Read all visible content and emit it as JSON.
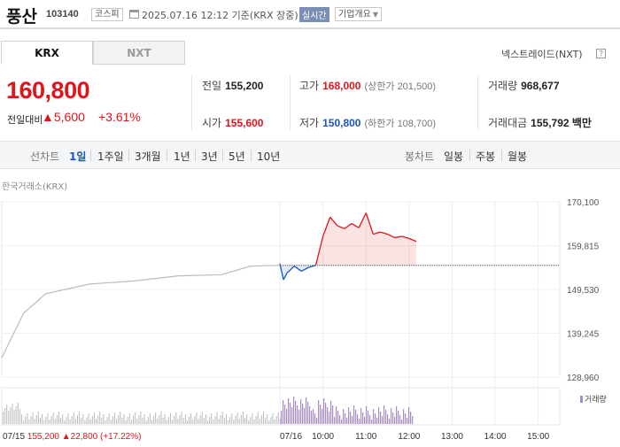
{
  "header": {
    "name": "풍산",
    "code": "103140",
    "market": "코스피",
    "datetime": "2025.07.16 12:12 기준(KRX 장중)",
    "realtime": "실시간",
    "company_info": "기업개요"
  },
  "tabs": {
    "krx": "KRX",
    "nxt": "NXT"
  },
  "nxt_link": "넥스트레이드(NXT)",
  "help_icon": "?",
  "quote": {
    "price": "160,800",
    "change_label": "전일대비",
    "change_arrow": "▲",
    "change": "5,600",
    "change_pct": "+3.61%"
  },
  "stats": {
    "prev_close": {
      "label": "전일",
      "value": "155,200"
    },
    "high": {
      "label": "고가",
      "value": "168,000",
      "sub": "(상한가 201,500)"
    },
    "volume": {
      "label": "거래량",
      "value": "968,677"
    },
    "open": {
      "label": "시가",
      "value": "155,600"
    },
    "low": {
      "label": "저가",
      "value": "150,800",
      "sub": "(하한가 108,700)"
    },
    "amount": {
      "label": "거래대금",
      "value": "155,792 백만"
    }
  },
  "period_bar": {
    "line_chart": "선차트",
    "periods": [
      "1일",
      "1주일",
      "3개월",
      "1년",
      "3년",
      "5년",
      "10년"
    ],
    "selected_period": "1일",
    "candle_chart": "봉차트",
    "candle_periods": [
      "일봉",
      "주봉",
      "월봉"
    ]
  },
  "source": "한국거래소(KRX)",
  "volume_legend": "거래량",
  "footer": {
    "date": "07/15",
    "price": "155,200",
    "arrow": "▲",
    "change": "22,800",
    "pct": "(+17.22%)"
  },
  "colors": {
    "up": "#e0151b",
    "down": "#1a55c5",
    "prev_line": "#bbbbbb",
    "volume": "#a78bd0"
  },
  "chart_data": {
    "type": "line",
    "y_ticks": [
      "170,100",
      "159,815",
      "149,530",
      "139,245",
      "128,960"
    ],
    "ylim": [
      128960,
      170100
    ],
    "x_ticks": [
      "07/16",
      "10:00",
      "11:00",
      "12:00",
      "13:00",
      "14:00",
      "15:00"
    ],
    "baseline": 155200,
    "series": [
      {
        "x": [
          "07/15 09:00",
          "07/15 09:30",
          "07/15 10:00",
          "07/15 11:00",
          "07/15 12:00",
          "07/15 13:00",
          "07/15 14:00",
          "07/15 14:40",
          "07/15 15:20"
        ],
        "values": [
          133500,
          144000,
          148500,
          150800,
          151500,
          152700,
          153000,
          155000,
          155200
        ]
      },
      {
        "x": [
          "09:00",
          "09:05",
          "09:10",
          "09:20",
          "09:30",
          "09:40",
          "09:50",
          "10:00",
          "10:10",
          "10:20",
          "10:30",
          "10:40",
          "10:50",
          "11:00",
          "11:10",
          "11:20",
          "11:30",
          "11:40",
          "11:50",
          "12:00",
          "12:10"
        ],
        "values": [
          155600,
          151800,
          153400,
          155000,
          153800,
          154700,
          155200,
          162000,
          166500,
          164500,
          163800,
          165000,
          164000,
          167500,
          162500,
          163000,
          162500,
          161700,
          162000,
          161500,
          160800
        ]
      }
    ]
  }
}
